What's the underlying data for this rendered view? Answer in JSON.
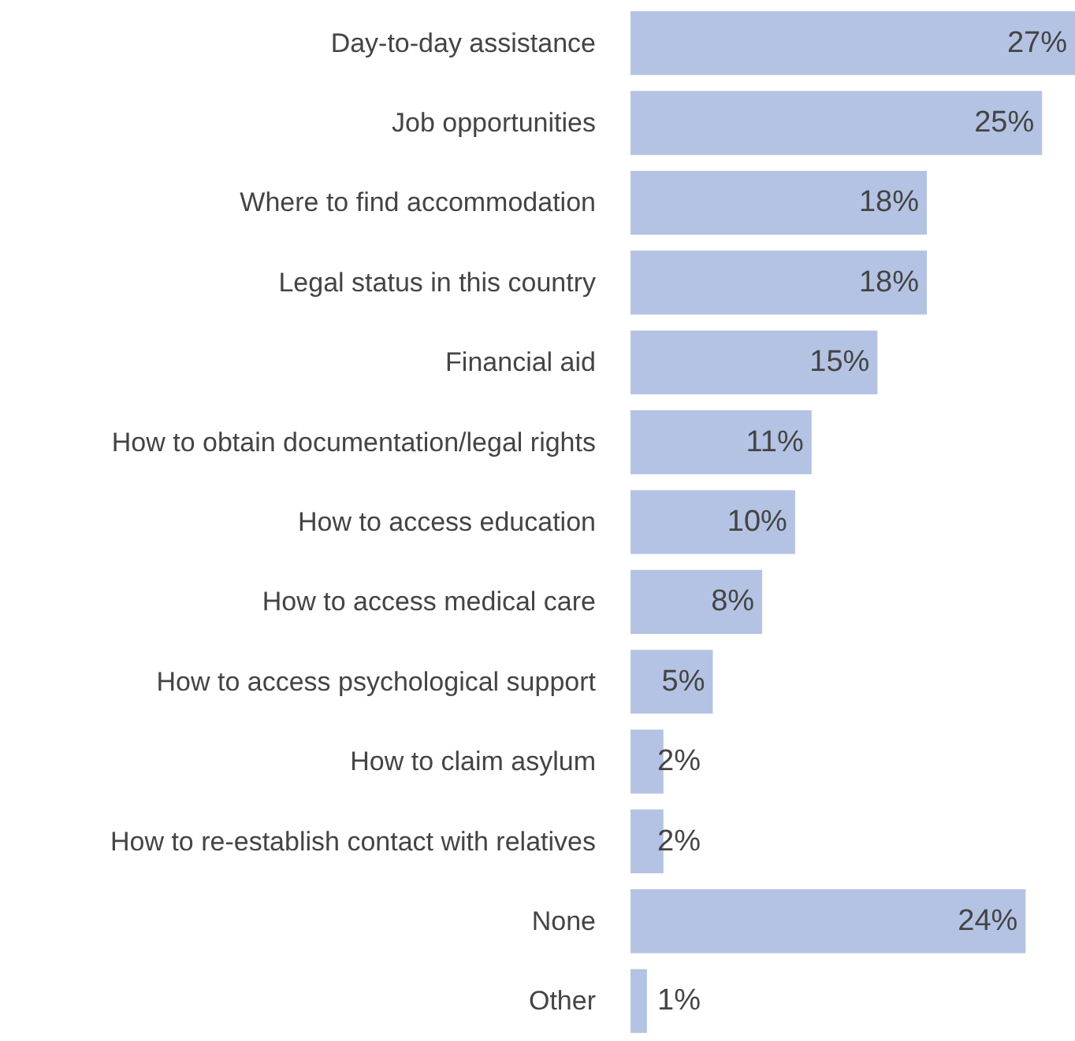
{
  "chart_data": {
    "type": "bar",
    "orientation": "horizontal",
    "categories": [
      "Day-to-day assistance",
      "Job opportunities",
      "Where to find accommodation",
      "Legal status in this country",
      "Financial aid",
      "How to obtain documentation/legal rights",
      "How to access education",
      "How to access medical care",
      "How to access psychological support",
      "How to claim asylum",
      "How to re-establish contact with relatives",
      "None",
      "Other"
    ],
    "values": [
      27,
      25,
      18,
      18,
      15,
      11,
      10,
      8,
      5,
      2,
      2,
      24,
      1
    ],
    "color": "#b4c3e3",
    "value_labels": [
      "27%",
      "25%",
      "18%",
      "18%",
      "15%",
      "11%",
      "10%",
      "8%",
      "5%",
      "2%",
      "2%",
      "24%",
      "1%"
    ]
  }
}
